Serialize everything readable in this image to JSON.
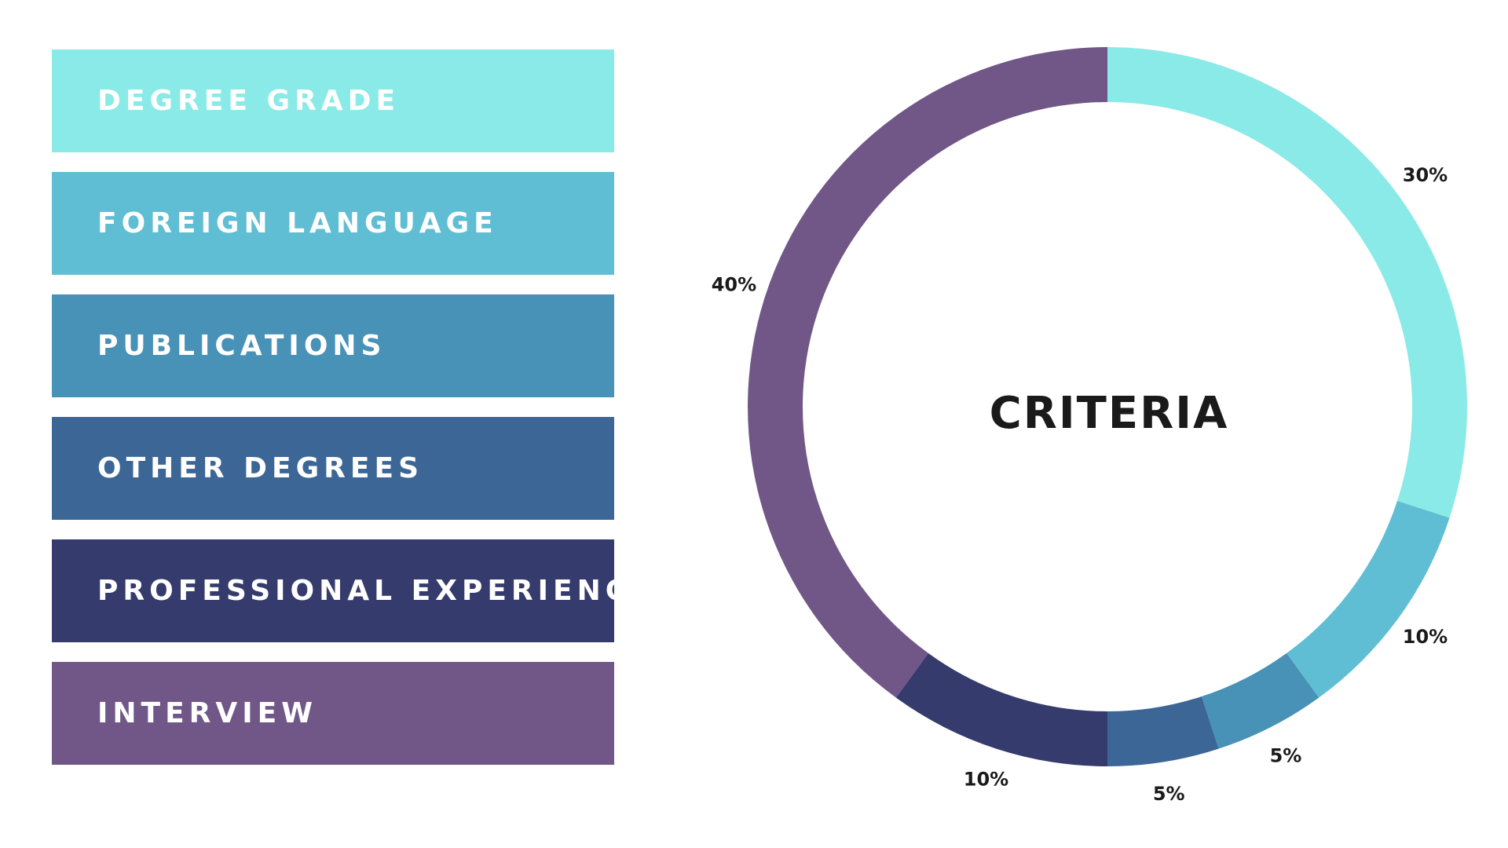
{
  "chart_data": {
    "type": "pie",
    "title": "CRITERIA",
    "categories": [
      "DEGREE GRADE",
      "FOREIGN LANGUAGE",
      "PUBLICATIONS",
      "OTHER DEGREES",
      "PROFESSIONAL EXPERIENCE",
      "INTERVIEW"
    ],
    "values": [
      30,
      10,
      5,
      5,
      10,
      40
    ],
    "value_labels": [
      "30%",
      "10%",
      "5%",
      "5%",
      "10%",
      "40%"
    ],
    "colors": [
      "#8AEAE7",
      "#60BED4",
      "#4891B7",
      "#3C6696",
      "#353B6C",
      "#715787"
    ],
    "donut": true,
    "legend_position": "left"
  }
}
